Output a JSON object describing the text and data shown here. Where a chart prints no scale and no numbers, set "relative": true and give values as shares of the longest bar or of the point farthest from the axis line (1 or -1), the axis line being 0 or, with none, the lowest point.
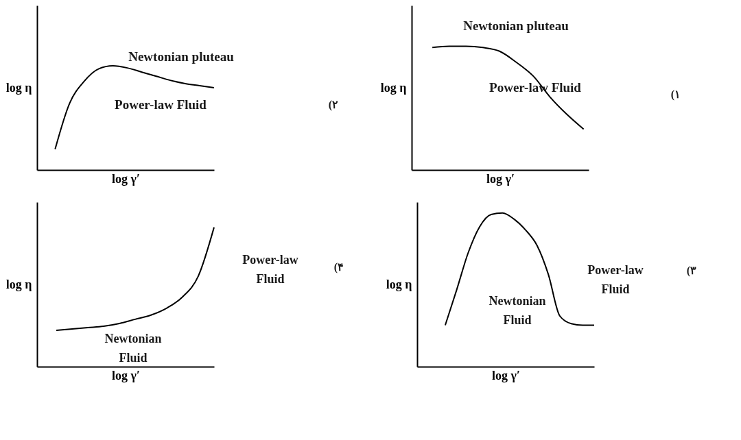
{
  "chart_data": [
    {
      "type": "line",
      "relative": true,
      "xlabel": "log γ′",
      "ylabel": "log η",
      "categories": [
        null,
        null,
        null,
        null,
        null,
        null,
        null,
        null,
        null,
        null,
        null,
        null
      ],
      "series": [
        {
          "color": "#000000",
          "values": [
            0.2,
            0.64,
            0.85,
            0.97,
            1.0,
            0.98,
            0.94,
            0.9,
            0.86,
            0.83,
            0.81,
            0.79
          ]
        }
      ],
      "annotations": [
        "Newtonian pluteau",
        "Power-law Fluid",
        "(۲"
      ]
    },
    {
      "type": "line",
      "relative": true,
      "xlabel": "log γ′",
      "ylabel": "log η",
      "categories": [
        null,
        null,
        null,
        null,
        null,
        null,
        null,
        null,
        null,
        null
      ],
      "series": [
        {
          "color": "#000000",
          "values": [
            0.99,
            1.0,
            1.0,
            0.99,
            0.96,
            0.87,
            0.76,
            0.59,
            0.45,
            0.33
          ]
        }
      ],
      "annotations": [
        "Newtonian pluteau",
        "Power-law Fluid",
        "(۱"
      ]
    },
    {
      "type": "line",
      "relative": true,
      "xlabel": "log γ′",
      "ylabel": "log η",
      "categories": [
        null,
        null,
        null,
        null,
        null,
        null,
        null,
        null,
        null,
        null,
        null
      ],
      "series": [
        {
          "color": "#000000",
          "values": [
            0.26,
            0.27,
            0.28,
            0.29,
            0.31,
            0.34,
            0.37,
            0.42,
            0.5,
            0.65,
            1.0
          ]
        }
      ],
      "annotations": [
        "Power-law\nFluid",
        "Newtonian\nFluid",
        "(۴"
      ]
    },
    {
      "type": "line",
      "relative": true,
      "xlabel": "log γ′",
      "ylabel": "log η",
      "categories": [
        null,
        null,
        null,
        null,
        null,
        null,
        null,
        null,
        null,
        null,
        null,
        null,
        null,
        null
      ],
      "series": [
        {
          "color": "#000000",
          "values": [
            0.27,
            0.5,
            0.74,
            0.91,
            0.99,
            1.0,
            0.96,
            0.89,
            0.79,
            0.6,
            0.33,
            0.28,
            0.27,
            0.27
          ]
        }
      ],
      "annotations": [
        "Power-law\nFluid",
        "Newtonian\nFluid",
        "(۳"
      ]
    }
  ]
}
